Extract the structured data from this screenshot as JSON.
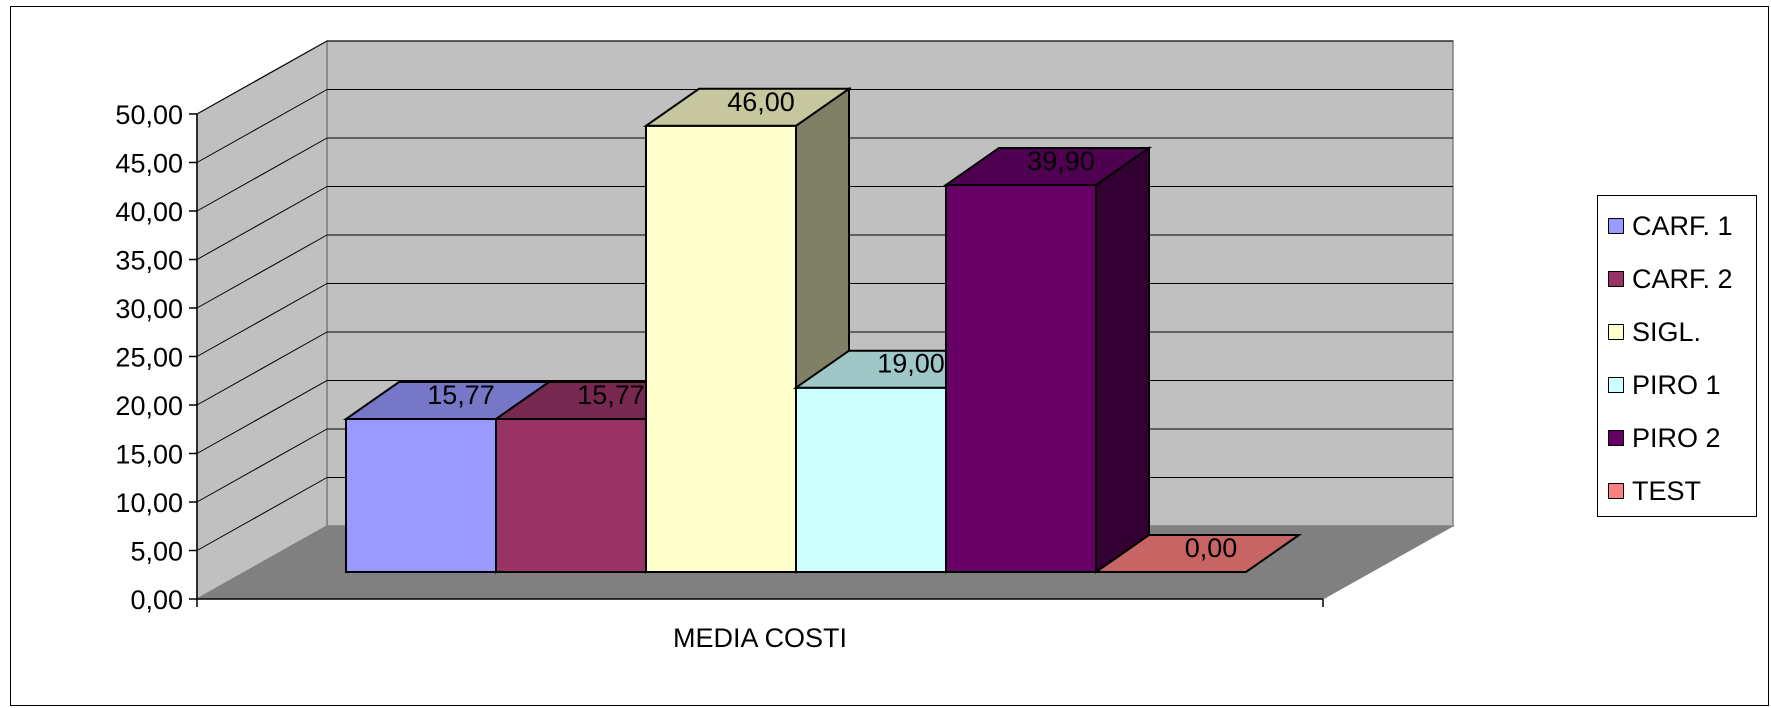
{
  "chart_data": {
    "type": "bar",
    "title": "",
    "xlabel": "",
    "ylabel": "",
    "categories": [
      "MEDIA COSTI"
    ],
    "ylim": [
      0,
      50
    ],
    "ytick_step": 5,
    "ytick_labels": [
      "0,00",
      "5,00",
      "10,00",
      "15,00",
      "20,00",
      "25,00",
      "30,00",
      "35,00",
      "40,00",
      "45,00",
      "50,00"
    ],
    "grid": true,
    "legend_position": "right",
    "series": [
      {
        "name": "CARF. 1",
        "value": 15.77,
        "label": "15,77",
        "color": "#9999ff"
      },
      {
        "name": "CARF. 2",
        "value": 15.77,
        "label": "15,77",
        "color": "#993366"
      },
      {
        "name": "SIGL.",
        "value": 46.0,
        "label": "46,00",
        "color": "#ffffcc"
      },
      {
        "name": "PIRO 1",
        "value": 19.0,
        "label": "19,00",
        "color": "#ccffff"
      },
      {
        "name": "PIRO 2",
        "value": 39.9,
        "label": "39,90",
        "color": "#660066"
      },
      {
        "name": "TEST",
        "value": 0.0,
        "label": "0,00",
        "color": "#ff8080"
      }
    ]
  }
}
